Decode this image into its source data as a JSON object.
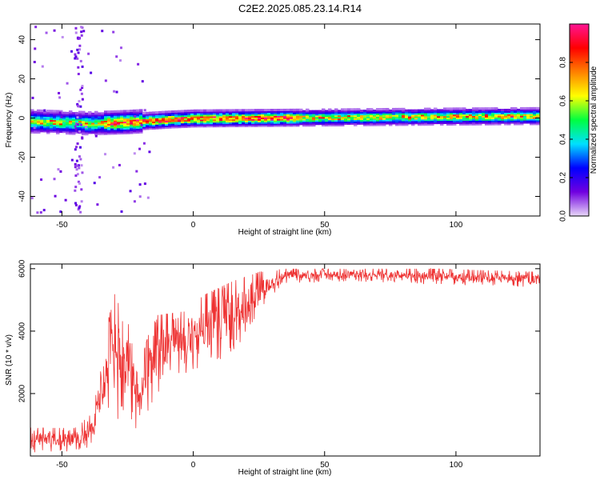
{
  "title": "C2E2.2025.085.23.14.R14",
  "chart_data": [
    {
      "type": "heatmap",
      "xlabel": "Height of straight line (km)",
      "ylabel": "Frequency (Hz)",
      "xlim": [
        -62,
        132
      ],
      "ylim": [
        -50,
        48
      ],
      "xticks": [
        -50,
        0,
        50,
        100
      ],
      "yticks": [
        -40,
        -20,
        0,
        20,
        40
      ],
      "colorbar": {
        "label": "Normalized spectral amplitude",
        "range": [
          0,
          1
        ],
        "ticks": [
          0.0,
          0.2,
          0.4,
          0.6,
          0.8
        ],
        "tick_labels": [
          "0.0",
          "0.2",
          "0.4",
          "0.6",
          "0.8"
        ],
        "colors": [
          "#e8d8f8",
          "#7000e0",
          "#0000ff",
          "#00e0ff",
          "#00ff40",
          "#ffff00",
          "#ff8000",
          "#ff0000",
          "#ff1493"
        ]
      },
      "ridge": [
        {
          "x": -62,
          "f": -1.5
        },
        {
          "x": -50,
          "f": -2.0
        },
        {
          "x": -40,
          "f": -2.5
        },
        {
          "x": -25,
          "f": -1.8
        },
        {
          "x": -10,
          "f": -0.6
        },
        {
          "x": 0,
          "f": 0.0
        },
        {
          "x": 20,
          "f": 0.2
        },
        {
          "x": 50,
          "f": 0.5
        },
        {
          "x": 80,
          "f": 0.8
        },
        {
          "x": 100,
          "f": 1.0
        },
        {
          "x": 132,
          "f": 1.2
        }
      ]
    },
    {
      "type": "line",
      "xlabel": "Height of straight line (km)",
      "ylabel": "SNR (10 * v/v)",
      "xlim": [
        -62,
        132
      ],
      "ylim": [
        0,
        6150
      ],
      "xticks": [
        -50,
        0,
        50,
        100
      ],
      "yticks": [
        2000,
        4000,
        6000
      ],
      "color": "#ee3333",
      "envelope": [
        {
          "x": -62,
          "lo": 100,
          "hi": 900
        },
        {
          "x": -45,
          "lo": 150,
          "hi": 900
        },
        {
          "x": -38,
          "lo": 300,
          "hi": 1400
        },
        {
          "x": -34,
          "lo": 900,
          "hi": 3800
        },
        {
          "x": -30,
          "lo": 1200,
          "hi": 5200
        },
        {
          "x": -25,
          "lo": 900,
          "hi": 4300
        },
        {
          "x": -20,
          "lo": 300,
          "hi": 3000
        },
        {
          "x": -15,
          "lo": 1800,
          "hi": 4500
        },
        {
          "x": -5,
          "lo": 2500,
          "hi": 4600
        },
        {
          "x": 5,
          "lo": 2800,
          "hi": 5200
        },
        {
          "x": 15,
          "lo": 3200,
          "hi": 5600
        },
        {
          "x": 25,
          "lo": 4600,
          "hi": 5900
        },
        {
          "x": 35,
          "lo": 5500,
          "hi": 6000
        },
        {
          "x": 60,
          "lo": 5600,
          "hi": 6000
        },
        {
          "x": 90,
          "lo": 5500,
          "hi": 6000
        },
        {
          "x": 132,
          "lo": 5400,
          "hi": 5900
        }
      ]
    }
  ]
}
